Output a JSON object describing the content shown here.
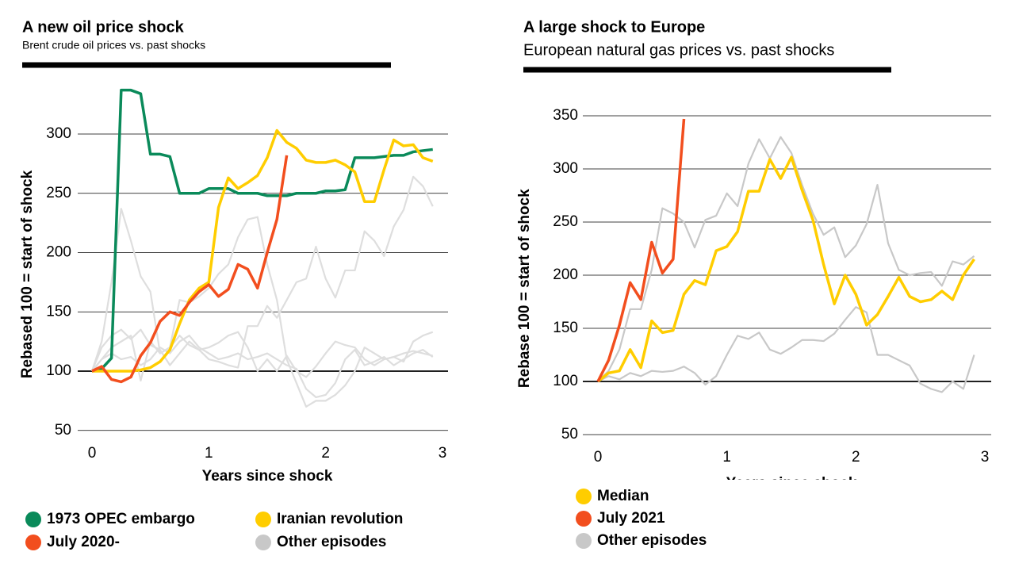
{
  "chart_data": [
    {
      "type": "line",
      "title": "A new oil price shock",
      "subtitle": "Brent crude oil prices vs. past shocks",
      "xlabel": "Years since shock",
      "ylabel": "Rebased 100 = start of shock",
      "x": [
        0,
        0.083,
        0.167,
        0.25,
        0.333,
        0.417,
        0.5,
        0.583,
        0.667,
        0.75,
        0.833,
        0.917,
        1,
        1.083,
        1.167,
        1.25,
        1.333,
        1.417,
        1.5,
        1.583,
        1.667,
        1.75,
        1.833,
        1.917,
        2,
        2.083,
        2.167,
        2.25,
        2.333,
        2.417,
        2.5,
        2.583,
        2.667,
        2.75,
        2.833,
        2.917
      ],
      "xlim": [
        0,
        3
      ],
      "xticks": [
        0,
        1,
        2,
        3
      ],
      "ylim": [
        50,
        340
      ],
      "yticks": [
        50,
        100,
        150,
        200,
        250,
        300
      ],
      "baseline": 100,
      "grid": true,
      "series": [
        {
          "name": "1973 OPEC embargo",
          "color": "#0a8a5a",
          "values": [
            100,
            102,
            111,
            337,
            337,
            334,
            283,
            283,
            281,
            250,
            250,
            250,
            254,
            254,
            254,
            250,
            250,
            250,
            248,
            248,
            248,
            250,
            250,
            250,
            252,
            252,
            253,
            280,
            280,
            280,
            281,
            282,
            282,
            285,
            286,
            287
          ]
        },
        {
          "name": "Iranian revolution",
          "color": "#ffcd00",
          "values": [
            100,
            100,
            100,
            100,
            100,
            101,
            103,
            108,
            118,
            140,
            160,
            170,
            175,
            238,
            263,
            254,
            259,
            265,
            280,
            303,
            293,
            288,
            278,
            276,
            276,
            278,
            274,
            268,
            243,
            243,
            270,
            295,
            290,
            291,
            280,
            277
          ]
        },
        {
          "name": "July 2020-",
          "color": "#f24e1e",
          "values": [
            100,
            104,
            93,
            91,
            95,
            113,
            124,
            142,
            150,
            147,
            158,
            167,
            173,
            163,
            169,
            190,
            186,
            170,
            200,
            228,
            282,
            null,
            null,
            null,
            null,
            null,
            null,
            null,
            null,
            null,
            null,
            null,
            null,
            null,
            null,
            null
          ]
        },
        {
          "name": "Other episodes",
          "color": "#dedede",
          "lines": [
            [
              100,
              125,
              175,
              237,
              210,
              180,
              167,
              115,
              120,
              160,
              158,
              163,
              170,
              182,
              190,
              213,
              228,
              230,
              190,
              160,
              110,
              90,
              70,
              75,
              75,
              80,
              88,
              100,
              120,
              115,
              110,
              112,
              115,
              117,
              115,
              113
            ],
            [
              100,
              110,
              120,
              125,
              130,
              92,
              125,
              115,
              120,
              130,
              122,
              118,
              120,
              124,
              130,
              133,
              120,
              100,
              110,
              100,
              113,
              100,
              95,
              104,
              115,
              125,
              122,
              120,
              110,
              105,
              110,
              112,
              108,
              125,
              130,
              133
            ],
            [
              100,
              120,
              130,
              135,
              127,
              135,
              122,
              118,
              105,
              115,
              125,
              118,
              110,
              108,
              105,
              103,
              138,
              138,
              155,
              145,
              160,
              175,
              178,
              205,
              178,
              162,
              185,
              185,
              218,
              210,
              197,
              222,
              236,
              264,
              256,
              239
            ],
            [
              100,
              110,
              115,
              110,
              112,
              105,
              110,
              120,
              115,
              125,
              130,
              120,
              115,
              110,
              112,
              115,
              110,
              112,
              115,
              110,
              105,
              102,
              85,
              78,
              80,
              90,
              110,
              118,
              105,
              108,
              112,
              105,
              110,
              115,
              118,
              112
            ]
          ]
        }
      ]
    },
    {
      "type": "line",
      "title": "A large shock to Europe",
      "subtitle": "European natural gas prices vs. past shocks",
      "xlabel": "Years since shock",
      "ylabel": "Rebase 100 = start of shock",
      "x": [
        0,
        0.083,
        0.167,
        0.25,
        0.333,
        0.417,
        0.5,
        0.583,
        0.667,
        0.75,
        0.833,
        0.917,
        1,
        1.083,
        1.167,
        1.25,
        1.333,
        1.417,
        1.5,
        1.583,
        1.667,
        1.75,
        1.833,
        1.917,
        2,
        2.083,
        2.167,
        2.25,
        2.333,
        2.417,
        2.5,
        2.583,
        2.667,
        2.75,
        2.833,
        2.917
      ],
      "xlim": [
        0,
        3
      ],
      "xticks": [
        0,
        1,
        2,
        3
      ],
      "ylim": [
        50,
        355
      ],
      "yticks": [
        50,
        100,
        150,
        200,
        250,
        300,
        350
      ],
      "baseline": 100,
      "grid": true,
      "series": [
        {
          "name": "Median",
          "color": "#ffcd00",
          "values": [
            100,
            108,
            110,
            130,
            113,
            157,
            146,
            148,
            182,
            195,
            191,
            223,
            227,
            241,
            279,
            279,
            309,
            291,
            311,
            280,
            252,
            210,
            173,
            200,
            182,
            153,
            163,
            180,
            198,
            180,
            175,
            177,
            185,
            177,
            200,
            215
          ]
        },
        {
          "name": "July 2021",
          "color": "#f24e1e",
          "values": [
            100,
            120,
            153,
            193,
            177,
            231,
            202,
            215,
            347,
            null,
            null,
            null,
            null,
            null,
            null,
            null,
            null,
            null,
            null,
            null,
            null,
            null,
            null,
            null,
            null,
            null,
            null,
            null,
            null,
            null,
            null,
            null,
            null,
            null,
            null,
            null
          ]
        },
        {
          "name": "Other episodes",
          "color": "#c8c8c8",
          "lines": [
            [
              100,
              110,
              130,
              168,
              168,
              205,
              263,
              258,
              250,
              226,
              252,
              256,
              277,
              265,
              305,
              328,
              310,
              330,
              315,
              285,
              258,
              238,
              245,
              217,
              228,
              248,
              285,
              230,
              205,
              200,
              202,
              203,
              190,
              213,
              210,
              218
            ],
            [
              100,
              105,
              102,
              108,
              105,
              110,
              109,
              110,
              114,
              108,
              97,
              105,
              125,
              143,
              140,
              146,
              130,
              126,
              132,
              139,
              139,
              138,
              145,
              158,
              170,
              165,
              125,
              125,
              120,
              115,
              98,
              93,
              90,
              100,
              93,
              125
            ]
          ]
        }
      ]
    }
  ]
}
